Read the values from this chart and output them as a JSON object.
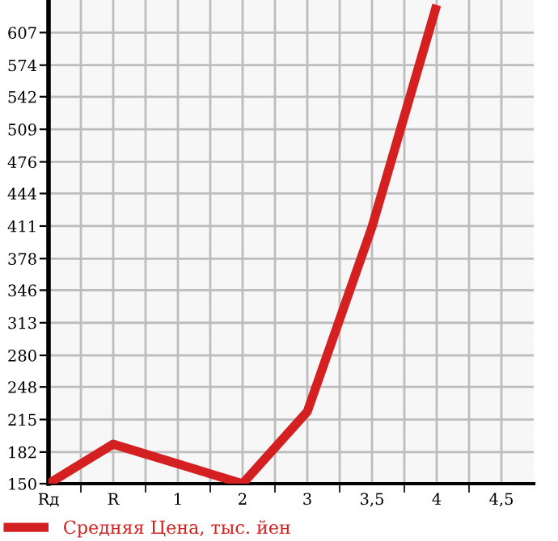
{
  "chart_data": {
    "type": "line",
    "categories": [
      "Rд",
      "R",
      "1",
      "2",
      "3",
      "3,5",
      "4",
      "4,5"
    ],
    "series": [
      {
        "name": "Средняя Цена, тыс. йен",
        "color": "#d42020",
        "values": [
          150,
          190,
          170,
          150,
          223,
          410,
          635,
          null
        ]
      }
    ],
    "ylim": [
      150,
      640
    ],
    "yticks": [
      150,
      182,
      215,
      248,
      280,
      313,
      346,
      378,
      411,
      444,
      476,
      509,
      542,
      574,
      607
    ],
    "grid": true,
    "legend": "bottom",
    "marker": "none",
    "line_style": "solid"
  }
}
